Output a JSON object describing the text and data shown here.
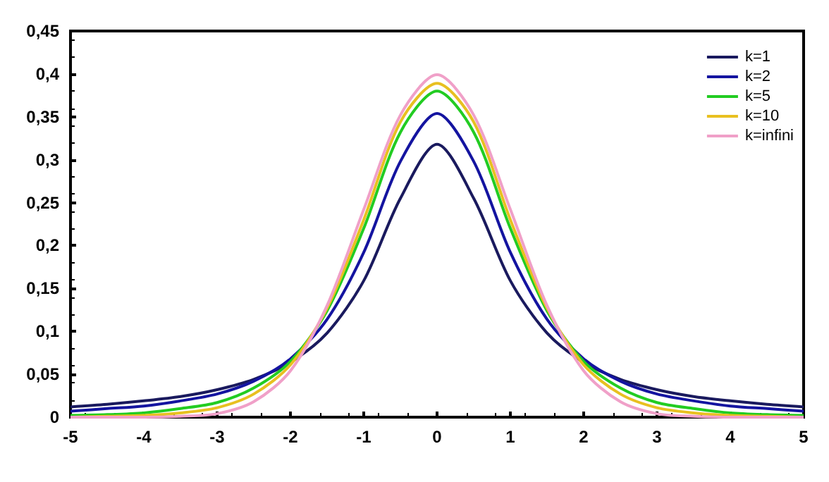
{
  "chart_data": {
    "type": "line",
    "x": [
      -5,
      -4.5,
      -4,
      -3.5,
      -3,
      -2.5,
      -2,
      -1.5,
      -1,
      -0.5,
      0,
      0.5,
      1,
      1.5,
      2,
      2.5,
      3,
      3.5,
      4,
      4.5,
      5
    ],
    "series": [
      {
        "name": "k=1",
        "color": "#1a1a5e",
        "values": [
          0.012,
          0.015,
          0.019,
          0.024,
          0.032,
          0.044,
          0.064,
          0.098,
          0.159,
          0.255,
          0.318,
          0.255,
          0.159,
          0.098,
          0.064,
          0.044,
          0.032,
          0.024,
          0.019,
          0.015,
          0.012
        ]
      },
      {
        "name": "k=2",
        "color": "#1414a0",
        "values": [
          0.007,
          0.01,
          0.013,
          0.019,
          0.027,
          0.042,
          0.068,
          0.114,
          0.192,
          0.298,
          0.354,
          0.298,
          0.192,
          0.114,
          0.068,
          0.042,
          0.027,
          0.019,
          0.013,
          0.01,
          0.007
        ]
      },
      {
        "name": "k=5",
        "color": "#22cc22",
        "values": [
          0.002,
          0.003,
          0.005,
          0.01,
          0.017,
          0.034,
          0.065,
          0.124,
          0.22,
          0.332,
          0.38,
          0.332,
          0.22,
          0.124,
          0.065,
          0.034,
          0.017,
          0.01,
          0.005,
          0.003,
          0.002
        ]
      },
      {
        "name": "k=10",
        "color": "#e8c020",
        "values": [
          0.0,
          0.001,
          0.002,
          0.005,
          0.011,
          0.027,
          0.061,
          0.127,
          0.23,
          0.344,
          0.389,
          0.344,
          0.23,
          0.127,
          0.061,
          0.027,
          0.011,
          0.005,
          0.002,
          0.001,
          0.0
        ]
      },
      {
        "name": "k=infini",
        "color": "#f0a0c8",
        "values": [
          0.0,
          0.0,
          0.0,
          0.001,
          0.004,
          0.018,
          0.054,
          0.13,
          0.242,
          0.352,
          0.399,
          0.352,
          0.242,
          0.13,
          0.054,
          0.018,
          0.004,
          0.001,
          0.0,
          0.0,
          0.0
        ]
      }
    ],
    "xlim": [
      -5,
      5
    ],
    "xticks": [
      -5,
      -4,
      -3,
      -2,
      -1,
      0,
      1,
      2,
      3,
      4,
      5
    ],
    "ylim": [
      0,
      0.45
    ],
    "yticks": [
      0,
      {
        "value": 0.05,
        "label": "0,05"
      },
      {
        "value": 0.1,
        "label": "0,1"
      },
      {
        "value": 0.15,
        "label": "0,15"
      },
      {
        "value": 0.2,
        "label": "0,2"
      },
      {
        "value": 0.25,
        "label": "0,25"
      },
      {
        "value": 0.3,
        "label": "0,3"
      },
      {
        "value": 0.35,
        "label": "0,35"
      },
      {
        "value": 0.4,
        "label": "0,4"
      },
      {
        "value": 0.45,
        "label": "0,45"
      }
    ],
    "grid": false,
    "legend": "top right",
    "marker": "none",
    "line_style": "solid"
  }
}
